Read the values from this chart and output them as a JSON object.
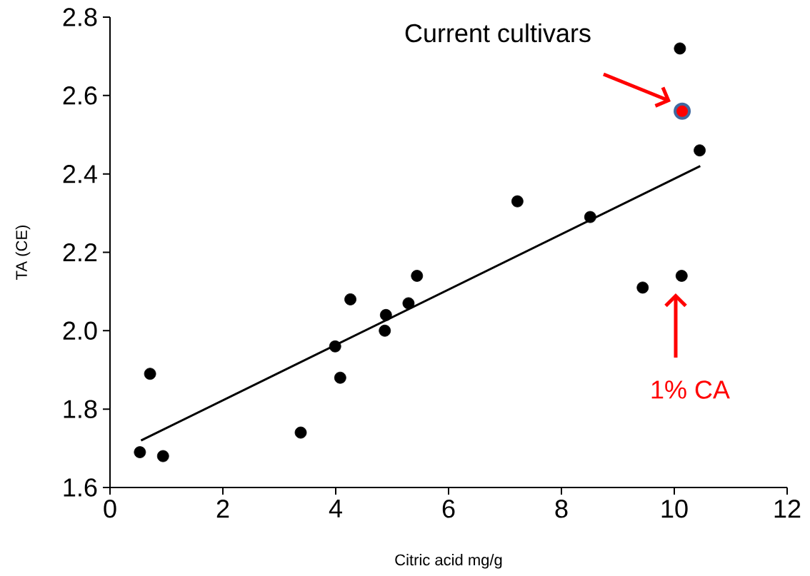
{
  "chart_data": {
    "type": "scatter",
    "xlabel": "Citric acid mg/g",
    "ylabel": "TA (CE)",
    "xlim": [
      0,
      12
    ],
    "ylim": [
      1.6,
      2.8
    ],
    "xticks": [
      0,
      2,
      4,
      6,
      8,
      10,
      12
    ],
    "yticks": [
      {
        "value": 1.6,
        "label": "1.6"
      },
      {
        "value": 1.8,
        "label": "1.8"
      },
      {
        "value": 2.0,
        "label": "2.0"
      },
      {
        "value": 2.2,
        "label": "2.2"
      },
      {
        "value": 2.4,
        "label": "2.4"
      },
      {
        "value": 2.6,
        "label": "2.6"
      },
      {
        "value": 2.8,
        "label": "2.8"
      }
    ],
    "legend": false,
    "grid": false,
    "series": [
      {
        "type": "line",
        "color": "#000000",
        "marker": "none",
        "x": [
          0.55,
          10.46
        ],
        "values": [
          1.72,
          2.42
        ]
      },
      {
        "type": "scatter",
        "color": "#000000",
        "x": [
          0.53,
          0.71,
          0.94,
          3.38,
          3.99,
          4.08,
          4.26,
          4.89,
          4.87,
          5.29,
          5.44,
          7.22,
          8.51,
          9.44,
          10.13,
          10.45,
          10.1
        ],
        "values": [
          1.69,
          1.89,
          1.68,
          1.74,
          1.96,
          1.88,
          2.08,
          2.04,
          2.0,
          2.07,
          2.14,
          2.33,
          2.29,
          2.11,
          2.14,
          2.46,
          2.72
        ]
      },
      {
        "type": "scatter",
        "color": "#ff0000",
        "x": [
          10.14
        ],
        "values": [
          2.56
        ]
      }
    ],
    "annotations": [
      "Current cultivars",
      "1% CA"
    ]
  }
}
